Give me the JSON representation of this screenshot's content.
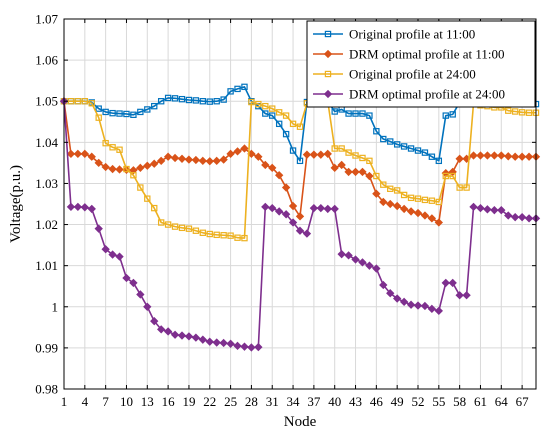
{
  "chart_data": {
    "type": "line",
    "xlabel": "Node",
    "ylabel": "Voltage(p.u.)",
    "xlim": [
      1,
      69
    ],
    "ylim": [
      0.98,
      1.07
    ],
    "xticks": [
      1,
      4,
      7,
      10,
      13,
      16,
      19,
      22,
      25,
      28,
      31,
      34,
      37,
      40,
      43,
      46,
      49,
      52,
      55,
      58,
      61,
      64,
      67
    ],
    "yticks": [
      0.98,
      0.99,
      1.0,
      1.01,
      1.02,
      1.03,
      1.04,
      1.05,
      1.06,
      1.07
    ],
    "ytick_labels": [
      "0.98",
      "0.99",
      "1",
      "1.01",
      "1.02",
      "1.03",
      "1.04",
      "1.05",
      "1.06",
      "1.07"
    ],
    "grid": true,
    "legend_position": "top-right",
    "x": [
      1,
      2,
      3,
      4,
      5,
      6,
      7,
      8,
      9,
      10,
      11,
      12,
      13,
      14,
      15,
      16,
      17,
      18,
      19,
      20,
      21,
      22,
      23,
      24,
      25,
      26,
      27,
      28,
      29,
      30,
      31,
      32,
      33,
      34,
      35,
      36,
      37,
      38,
      39,
      40,
      41,
      42,
      43,
      44,
      45,
      46,
      47,
      48,
      49,
      50,
      51,
      52,
      53,
      54,
      55,
      56,
      57,
      58,
      59,
      60,
      61,
      62,
      63,
      64,
      65,
      66,
      67,
      68,
      69
    ],
    "series": [
      {
        "name": "Original profile at 11:00",
        "color": "#0072BD",
        "marker": "square",
        "values": [
          1.05,
          1.05,
          1.05,
          1.05,
          1.0497,
          1.0482,
          1.0474,
          1.0471,
          1.047,
          1.0469,
          1.0467,
          1.0474,
          1.048,
          1.0488,
          1.05,
          1.0508,
          1.0507,
          1.0505,
          1.0503,
          1.0502,
          1.05,
          1.0499,
          1.05,
          1.0504,
          1.0524,
          1.053,
          1.0535,
          1.05,
          1.0488,
          1.047,
          1.0465,
          1.0445,
          1.042,
          1.038,
          1.0355,
          1.0498,
          1.0498,
          1.0498,
          1.05,
          1.0475,
          1.048,
          1.047,
          1.047,
          1.047,
          1.0465,
          1.0427,
          1.0408,
          1.0402,
          1.0395,
          1.039,
          1.0385,
          1.038,
          1.0375,
          1.0365,
          1.0355,
          1.0465,
          1.0468,
          1.0497,
          1.0497,
          1.0497,
          1.0497,
          1.0496,
          1.0495,
          1.0494,
          1.0493,
          1.0493,
          1.0493,
          1.0493,
          1.0493
        ]
      },
      {
        "name": "DRM optimal profile at 11:00",
        "color": "#D95319",
        "marker": "diamond",
        "values": [
          1.05,
          1.0372,
          1.0372,
          1.0372,
          1.0365,
          1.035,
          1.034,
          1.0335,
          1.0334,
          1.0333,
          1.0332,
          1.0338,
          1.0343,
          1.0348,
          1.0355,
          1.0365,
          1.0362,
          1.036,
          1.0358,
          1.0357,
          1.0355,
          1.0354,
          1.0355,
          1.0358,
          1.0372,
          1.0378,
          1.0385,
          1.0372,
          1.0365,
          1.0345,
          1.0338,
          1.032,
          1.029,
          1.0245,
          1.022,
          1.037,
          1.037,
          1.037,
          1.0372,
          1.0338,
          1.0345,
          1.0328,
          1.0328,
          1.0328,
          1.0318,
          1.0275,
          1.0255,
          1.025,
          1.0245,
          1.0238,
          1.0232,
          1.0228,
          1.0222,
          1.0215,
          1.0205,
          1.0325,
          1.0328,
          1.036,
          1.036,
          1.0368,
          1.0368,
          1.0368,
          1.0368,
          1.0368,
          1.0366,
          1.0365,
          1.0365,
          1.0365,
          1.0365
        ]
      },
      {
        "name": "Original profile at 24:00",
        "color": "#EDB120",
        "marker": "square",
        "values": [
          1.05,
          1.05,
          1.05,
          1.05,
          1.0495,
          1.046,
          1.0398,
          1.0388,
          1.0382,
          1.0335,
          1.032,
          1.029,
          1.0263,
          1.024,
          1.0205,
          1.02,
          1.0195,
          1.0192,
          1.019,
          1.0185,
          1.018,
          1.0177,
          1.0175,
          1.0174,
          1.0173,
          1.0168,
          1.0167,
          1.0498,
          1.0493,
          1.0488,
          1.0482,
          1.0473,
          1.0465,
          1.0445,
          1.0438,
          1.0495,
          1.05,
          1.0495,
          1.05,
          1.0385,
          1.0385,
          1.0375,
          1.0368,
          1.0362,
          1.0355,
          1.0318,
          1.0297,
          1.0287,
          1.0283,
          1.0272,
          1.0265,
          1.0263,
          1.026,
          1.0258,
          1.0255,
          1.0318,
          1.0318,
          1.029,
          1.029,
          1.0495,
          1.049,
          1.0488,
          1.0485,
          1.0485,
          1.0477,
          1.0475,
          1.0473,
          1.0472,
          1.0472
        ]
      },
      {
        "name": "DRM optimal profile at 24:00",
        "color": "#7E2F8E",
        "marker": "diamond",
        "values": [
          1.05,
          1.0243,
          1.0243,
          1.0242,
          1.0238,
          1.019,
          1.014,
          1.0127,
          1.0122,
          1.007,
          1.0058,
          1.003,
          1.0,
          0.9965,
          0.9945,
          0.994,
          0.9932,
          0.993,
          0.9928,
          0.9925,
          0.992,
          0.9915,
          0.9913,
          0.9912,
          0.991,
          0.9905,
          0.9903,
          0.9901,
          0.9902,
          1.0243,
          1.024,
          1.0232,
          1.0225,
          1.0205,
          1.0185,
          1.0178,
          1.024,
          1.024,
          1.0238,
          1.0238,
          1.0128,
          1.0125,
          1.0115,
          1.0108,
          1.01,
          1.0093,
          1.0053,
          1.0033,
          1.002,
          1.0012,
          1.0005,
          1.0003,
          1.0002,
          0.9995,
          0.999,
          1.0058,
          1.0058,
          1.0028,
          1.0028,
          1.0243,
          1.024,
          1.0237,
          1.0235,
          1.0235,
          1.0222,
          1.0218,
          1.0218,
          1.0215,
          1.0215
        ]
      }
    ]
  }
}
